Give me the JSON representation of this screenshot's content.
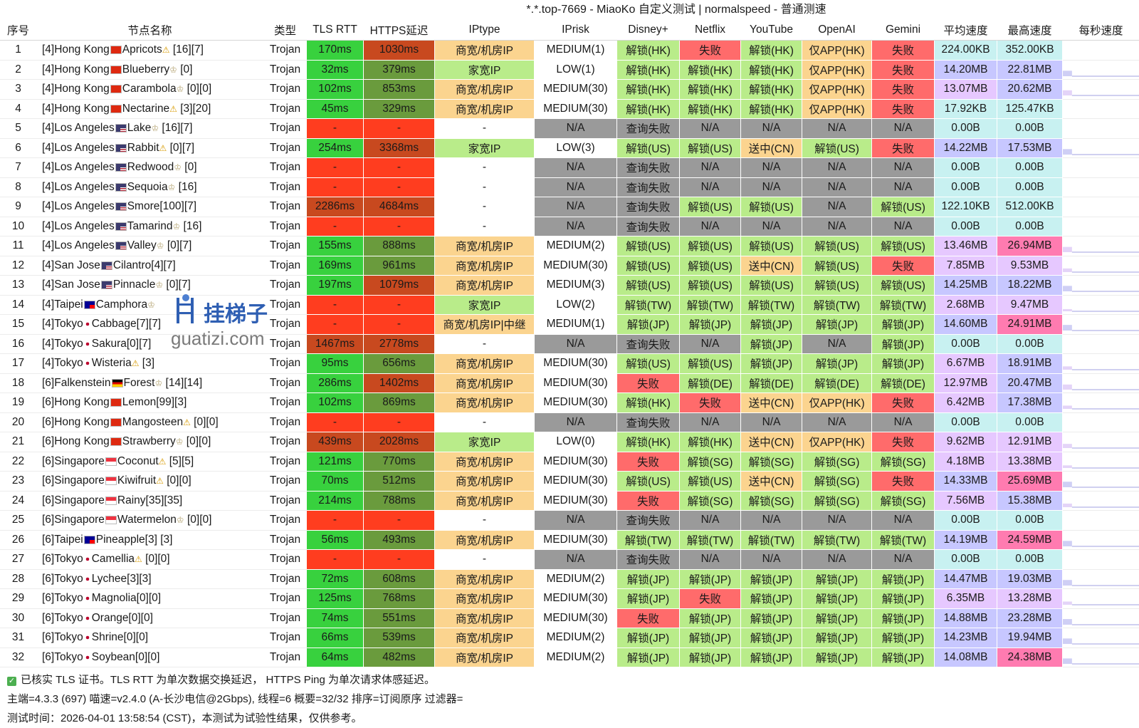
{
  "title": "*.*.top-7669 - MiaoKo 自定义测试 | normalspeed - 普通测速",
  "headers": [
    "序号",
    "节点名称",
    "类型",
    "TLS RTT",
    "HTTPS延迟",
    "IPtype",
    "IPrisk",
    "Disney+",
    "Netflix",
    "YouTube",
    "OpenAI",
    "Gemini",
    "平均速度",
    "最高速度",
    "每秒速度"
  ],
  "colors": {
    "green": "#38d13e",
    "red": "#ff3d1f",
    "olive": "#6a9b3d",
    "brownred": "#c8491f",
    "ok": "#b9ec8a",
    "fail": "#ff6b6b",
    "gray": "#9a9a9a",
    "orange": "#fbd48f",
    "speed_purple": "#c7c7ff",
    "speed_pink": "#ff7bb0",
    "speed_cyan": "#c8f1f1",
    "speed_lilac": "#e6c8ff"
  },
  "rows": [
    [
      "1",
      "[4]Hong Kong",
      "hk",
      "Apricots",
      "warn",
      " [16][7]",
      "Trojan",
      "170ms",
      "1030ms",
      "商宽/机房IP",
      "MEDIUM(1)",
      "解锁(HK)",
      "失败",
      "解锁(HK)",
      "仅APP(HK)",
      "失败",
      "224.00KB",
      "352.00KB"
    ],
    [
      "2",
      "[4]Hong Kong",
      "hk",
      "Blueberry",
      "crown",
      " [0]",
      "Trojan",
      "32ms",
      "379ms",
      "家宽IP",
      "LOW(1)",
      "解锁(HK)",
      "解锁(HK)",
      "解锁(HK)",
      "仅APP(HK)",
      "失败",
      "14.20MB",
      "22.81MB"
    ],
    [
      "3",
      "[4]Hong Kong",
      "hk",
      "Carambola",
      "crown",
      " [0][0]",
      "Trojan",
      "102ms",
      "853ms",
      "商宽/机房IP",
      "MEDIUM(30)",
      "解锁(HK)",
      "解锁(HK)",
      "解锁(HK)",
      "仅APP(HK)",
      "失败",
      "13.07MB",
      "20.62MB"
    ],
    [
      "4",
      "[4]Hong Kong",
      "hk",
      "Nectarine",
      "warn",
      " [3][20]",
      "Trojan",
      "45ms",
      "329ms",
      "商宽/机房IP",
      "MEDIUM(30)",
      "解锁(HK)",
      "解锁(HK)",
      "解锁(HK)",
      "仅APP(HK)",
      "失败",
      "17.92KB",
      "125.47KB"
    ],
    [
      "5",
      "[4]Los Angeles",
      "us",
      "Lake",
      "crown",
      " [16][7]",
      "Trojan",
      "-",
      "-",
      "-",
      "N/A",
      "查询失败",
      "N/A",
      "N/A",
      "N/A",
      "N/A",
      "0.00B",
      "0.00B"
    ],
    [
      "6",
      "[4]Los Angeles",
      "us",
      "Rabbit",
      "warn",
      " [0][7]",
      "Trojan",
      "254ms",
      "3368ms",
      "家宽IP",
      "LOW(3)",
      "解锁(US)",
      "解锁(US)",
      "送中(CN)",
      "解锁(US)",
      "失败",
      "14.22MB",
      "17.53MB"
    ],
    [
      "7",
      "[4]Los Angeles",
      "us",
      "Redwood",
      "crown",
      " [0]",
      "Trojan",
      "-",
      "-",
      "-",
      "N/A",
      "查询失败",
      "N/A",
      "N/A",
      "N/A",
      "N/A",
      "0.00B",
      "0.00B"
    ],
    [
      "8",
      "[4]Los Angeles",
      "us",
      "Sequoia",
      "crown",
      " [16]",
      "Trojan",
      "-",
      "-",
      "-",
      "N/A",
      "查询失败",
      "N/A",
      "N/A",
      "N/A",
      "N/A",
      "0.00B",
      "0.00B"
    ],
    [
      "9",
      "[4]Los Angeles",
      "us",
      "Smore[100][7]",
      "none",
      "",
      "Trojan",
      "2286ms",
      "4684ms",
      "-",
      "N/A",
      "查询失败",
      "解锁(US)",
      "解锁(US)",
      "N/A",
      "解锁(US)",
      "122.10KB",
      "512.00KB"
    ],
    [
      "10",
      "[4]Los Angeles",
      "us",
      "Tamarind",
      "crown",
      " [16]",
      "Trojan",
      "-",
      "-",
      "-",
      "N/A",
      "查询失败",
      "N/A",
      "N/A",
      "N/A",
      "N/A",
      "0.00B",
      "0.00B"
    ],
    [
      "11",
      "[4]Los Angeles",
      "us",
      "Valley",
      "crown",
      " [0][7]",
      "Trojan",
      "155ms",
      "888ms",
      "商宽/机房IP",
      "MEDIUM(2)",
      "解锁(US)",
      "解锁(US)",
      "解锁(US)",
      "解锁(US)",
      "解锁(US)",
      "13.46MB",
      "26.94MB"
    ],
    [
      "12",
      "[4]San Jose",
      "us",
      "Cilantro[4][7]",
      "none",
      "",
      "Trojan",
      "169ms",
      "961ms",
      "商宽/机房IP",
      "MEDIUM(30)",
      "解锁(US)",
      "解锁(US)",
      "送中(CN)",
      "解锁(US)",
      "失败",
      "7.85MB",
      "9.53MB"
    ],
    [
      "13",
      "[4]San Jose",
      "us",
      "Pinnacle",
      "crown",
      " [0][7]",
      "Trojan",
      "197ms",
      "1079ms",
      "商宽/机房IP",
      "MEDIUM(3)",
      "解锁(US)",
      "解锁(US)",
      "解锁(US)",
      "解锁(US)",
      "解锁(US)",
      "14.25MB",
      "18.22MB"
    ],
    [
      "14",
      "[4]Taipei",
      "tw",
      "Camphora",
      "crown",
      "",
      "Trojan",
      "-",
      "-",
      "家宽IP",
      "LOW(2)",
      "解锁(TW)",
      "解锁(TW)",
      "解锁(TW)",
      "解锁(TW)",
      "解锁(TW)",
      "2.68MB",
      "9.47MB"
    ],
    [
      "15",
      "[4]Tokyo",
      "jp",
      "Cabbage[7][7]",
      "none",
      "",
      "Trojan",
      "-",
      "-",
      "商宽/机房IP|中继",
      "MEDIUM(1)",
      "解锁(JP)",
      "解锁(JP)",
      "解锁(JP)",
      "解锁(JP)",
      "解锁(JP)",
      "14.60MB",
      "24.91MB"
    ],
    [
      "16",
      "[4]Tokyo",
      "jp",
      "Sakura[0][7]",
      "none",
      "",
      "Trojan",
      "1467ms",
      "2778ms",
      "-",
      "N/A",
      "查询失败",
      "N/A",
      "解锁(JP)",
      "N/A",
      "解锁(JP)",
      "0.00B",
      "0.00B"
    ],
    [
      "17",
      "[4]Tokyo",
      "jp",
      "Wisteria",
      "warn",
      " [3]",
      "Trojan",
      "95ms",
      "656ms",
      "商宽/机房IP",
      "MEDIUM(30)",
      "解锁(US)",
      "解锁(US)",
      "解锁(JP)",
      "解锁(JP)",
      "解锁(JP)",
      "6.67MB",
      "18.91MB"
    ],
    [
      "18",
      "[6]Falkenstein",
      "de",
      "Forest",
      "crown",
      " [14][14]",
      "Trojan",
      "286ms",
      "1402ms",
      "商宽/机房IP",
      "MEDIUM(30)",
      "失败",
      "解锁(DE)",
      "解锁(DE)",
      "解锁(DE)",
      "解锁(DE)",
      "12.97MB",
      "20.47MB"
    ],
    [
      "19",
      "[6]Hong Kong",
      "hk",
      "Lemon[99][3]",
      "none",
      "",
      "Trojan",
      "102ms",
      "869ms",
      "商宽/机房IP",
      "MEDIUM(30)",
      "解锁(HK)",
      "失败",
      "送中(CN)",
      "仅APP(HK)",
      "失败",
      "6.42MB",
      "17.38MB"
    ],
    [
      "20",
      "[6]Hong Kong",
      "hk",
      "Mangosteen",
      "warn",
      " [0][0]",
      "Trojan",
      "-",
      "-",
      "-",
      "N/A",
      "查询失败",
      "N/A",
      "N/A",
      "N/A",
      "N/A",
      "0.00B",
      "0.00B"
    ],
    [
      "21",
      "[6]Hong Kong",
      "hk",
      "Strawberry",
      "crown",
      " [0][0]",
      "Trojan",
      "439ms",
      "2028ms",
      "家宽IP",
      "LOW(0)",
      "解锁(HK)",
      "解锁(HK)",
      "送中(CN)",
      "仅APP(HK)",
      "失败",
      "9.62MB",
      "12.91MB"
    ],
    [
      "22",
      "[6]Singapore",
      "sg",
      "Coconut",
      "warn",
      " [5][5]",
      "Trojan",
      "121ms",
      "770ms",
      "商宽/机房IP",
      "MEDIUM(30)",
      "失败",
      "解锁(SG)",
      "解锁(SG)",
      "解锁(SG)",
      "解锁(SG)",
      "4.18MB",
      "13.38MB"
    ],
    [
      "23",
      "[6]Singapore",
      "sg",
      "Kiwifruit",
      "warn",
      " [0][0]",
      "Trojan",
      "70ms",
      "512ms",
      "商宽/机房IP",
      "MEDIUM(30)",
      "解锁(US)",
      "解锁(US)",
      "送中(CN)",
      "解锁(SG)",
      "失败",
      "14.33MB",
      "25.69MB"
    ],
    [
      "24",
      "[6]Singapore",
      "sg",
      "Rainy[35][35]",
      "none",
      "",
      "Trojan",
      "214ms",
      "788ms",
      "商宽/机房IP",
      "MEDIUM(30)",
      "失败",
      "解锁(SG)",
      "解锁(SG)",
      "解锁(SG)",
      "解锁(SG)",
      "7.56MB",
      "15.38MB"
    ],
    [
      "25",
      "[6]Singapore",
      "sg",
      "Watermelon",
      "crown",
      " [0][0]",
      "Trojan",
      "-",
      "-",
      "-",
      "N/A",
      "查询失败",
      "N/A",
      "N/A",
      "N/A",
      "N/A",
      "0.00B",
      "0.00B"
    ],
    [
      "26",
      "[6]Taipei",
      "tw",
      "Pineapple[3]",
      "none",
      " [3]",
      "Trojan",
      "56ms",
      "493ms",
      "商宽/机房IP",
      "MEDIUM(30)",
      "解锁(TW)",
      "解锁(TW)",
      "解锁(TW)",
      "解锁(TW)",
      "解锁(TW)",
      "14.19MB",
      "24.59MB"
    ],
    [
      "27",
      "[6]Tokyo",
      "jp",
      "Camellia",
      "warn",
      " [0][0]",
      "Trojan",
      "-",
      "-",
      "-",
      "N/A",
      "查询失败",
      "N/A",
      "N/A",
      "N/A",
      "N/A",
      "0.00B",
      "0.00B"
    ],
    [
      "28",
      "[6]Tokyo",
      "jp",
      "Lychee[3][3]",
      "none",
      "",
      "Trojan",
      "72ms",
      "608ms",
      "商宽/机房IP",
      "MEDIUM(2)",
      "解锁(JP)",
      "解锁(JP)",
      "解锁(JP)",
      "解锁(JP)",
      "解锁(JP)",
      "14.47MB",
      "19.03MB"
    ],
    [
      "29",
      "[6]Tokyo",
      "jp",
      "Magnolia[0][0]",
      "none",
      "",
      "Trojan",
      "125ms",
      "768ms",
      "商宽/机房IP",
      "MEDIUM(30)",
      "解锁(JP)",
      "失败",
      "解锁(JP)",
      "解锁(JP)",
      "解锁(JP)",
      "6.35MB",
      "13.28MB"
    ],
    [
      "30",
      "[6]Tokyo",
      "jp",
      "Orange[0][0]",
      "none",
      "",
      "Trojan",
      "74ms",
      "551ms",
      "商宽/机房IP",
      "MEDIUM(30)",
      "失败",
      "解锁(JP)",
      "解锁(JP)",
      "解锁(JP)",
      "解锁(JP)",
      "14.88MB",
      "23.28MB"
    ],
    [
      "31",
      "[6]Tokyo",
      "jp",
      "Shrine[0][0]",
      "none",
      "",
      "Trojan",
      "66ms",
      "539ms",
      "商宽/机房IP",
      "MEDIUM(2)",
      "解锁(JP)",
      "解锁(JP)",
      "解锁(JP)",
      "解锁(JP)",
      "解锁(JP)",
      "14.23MB",
      "19.94MB"
    ],
    [
      "32",
      "[6]Tokyo",
      "jp",
      "Soybean[0][0]",
      "none",
      "",
      "Trojan",
      "64ms",
      "482ms",
      "商宽/机房IP",
      "MEDIUM(2)",
      "解锁(JP)",
      "解锁(JP)",
      "解锁(JP)",
      "解锁(JP)",
      "解锁(JP)",
      "14.08MB",
      "24.38MB"
    ]
  ],
  "footer": {
    "line1": "已核实 TLS 证书。TLS RTT 为单次数据交换延迟， HTTPS Ping 为单次请求体感延迟。",
    "line2": "主端=4.3.3 (697) 喵速=v2.4.0 (A-长沙电信@2Gbps), 线程=6 概要=32/32 排序=订阅原序 过滤器=",
    "line3": "测试时间：2026-04-01 13:58:54 (CST)，本测试为试验性结果，仅供参考。"
  },
  "watermark": {
    "line1": "挂梯子",
    "line2": "guatizi.com"
  }
}
